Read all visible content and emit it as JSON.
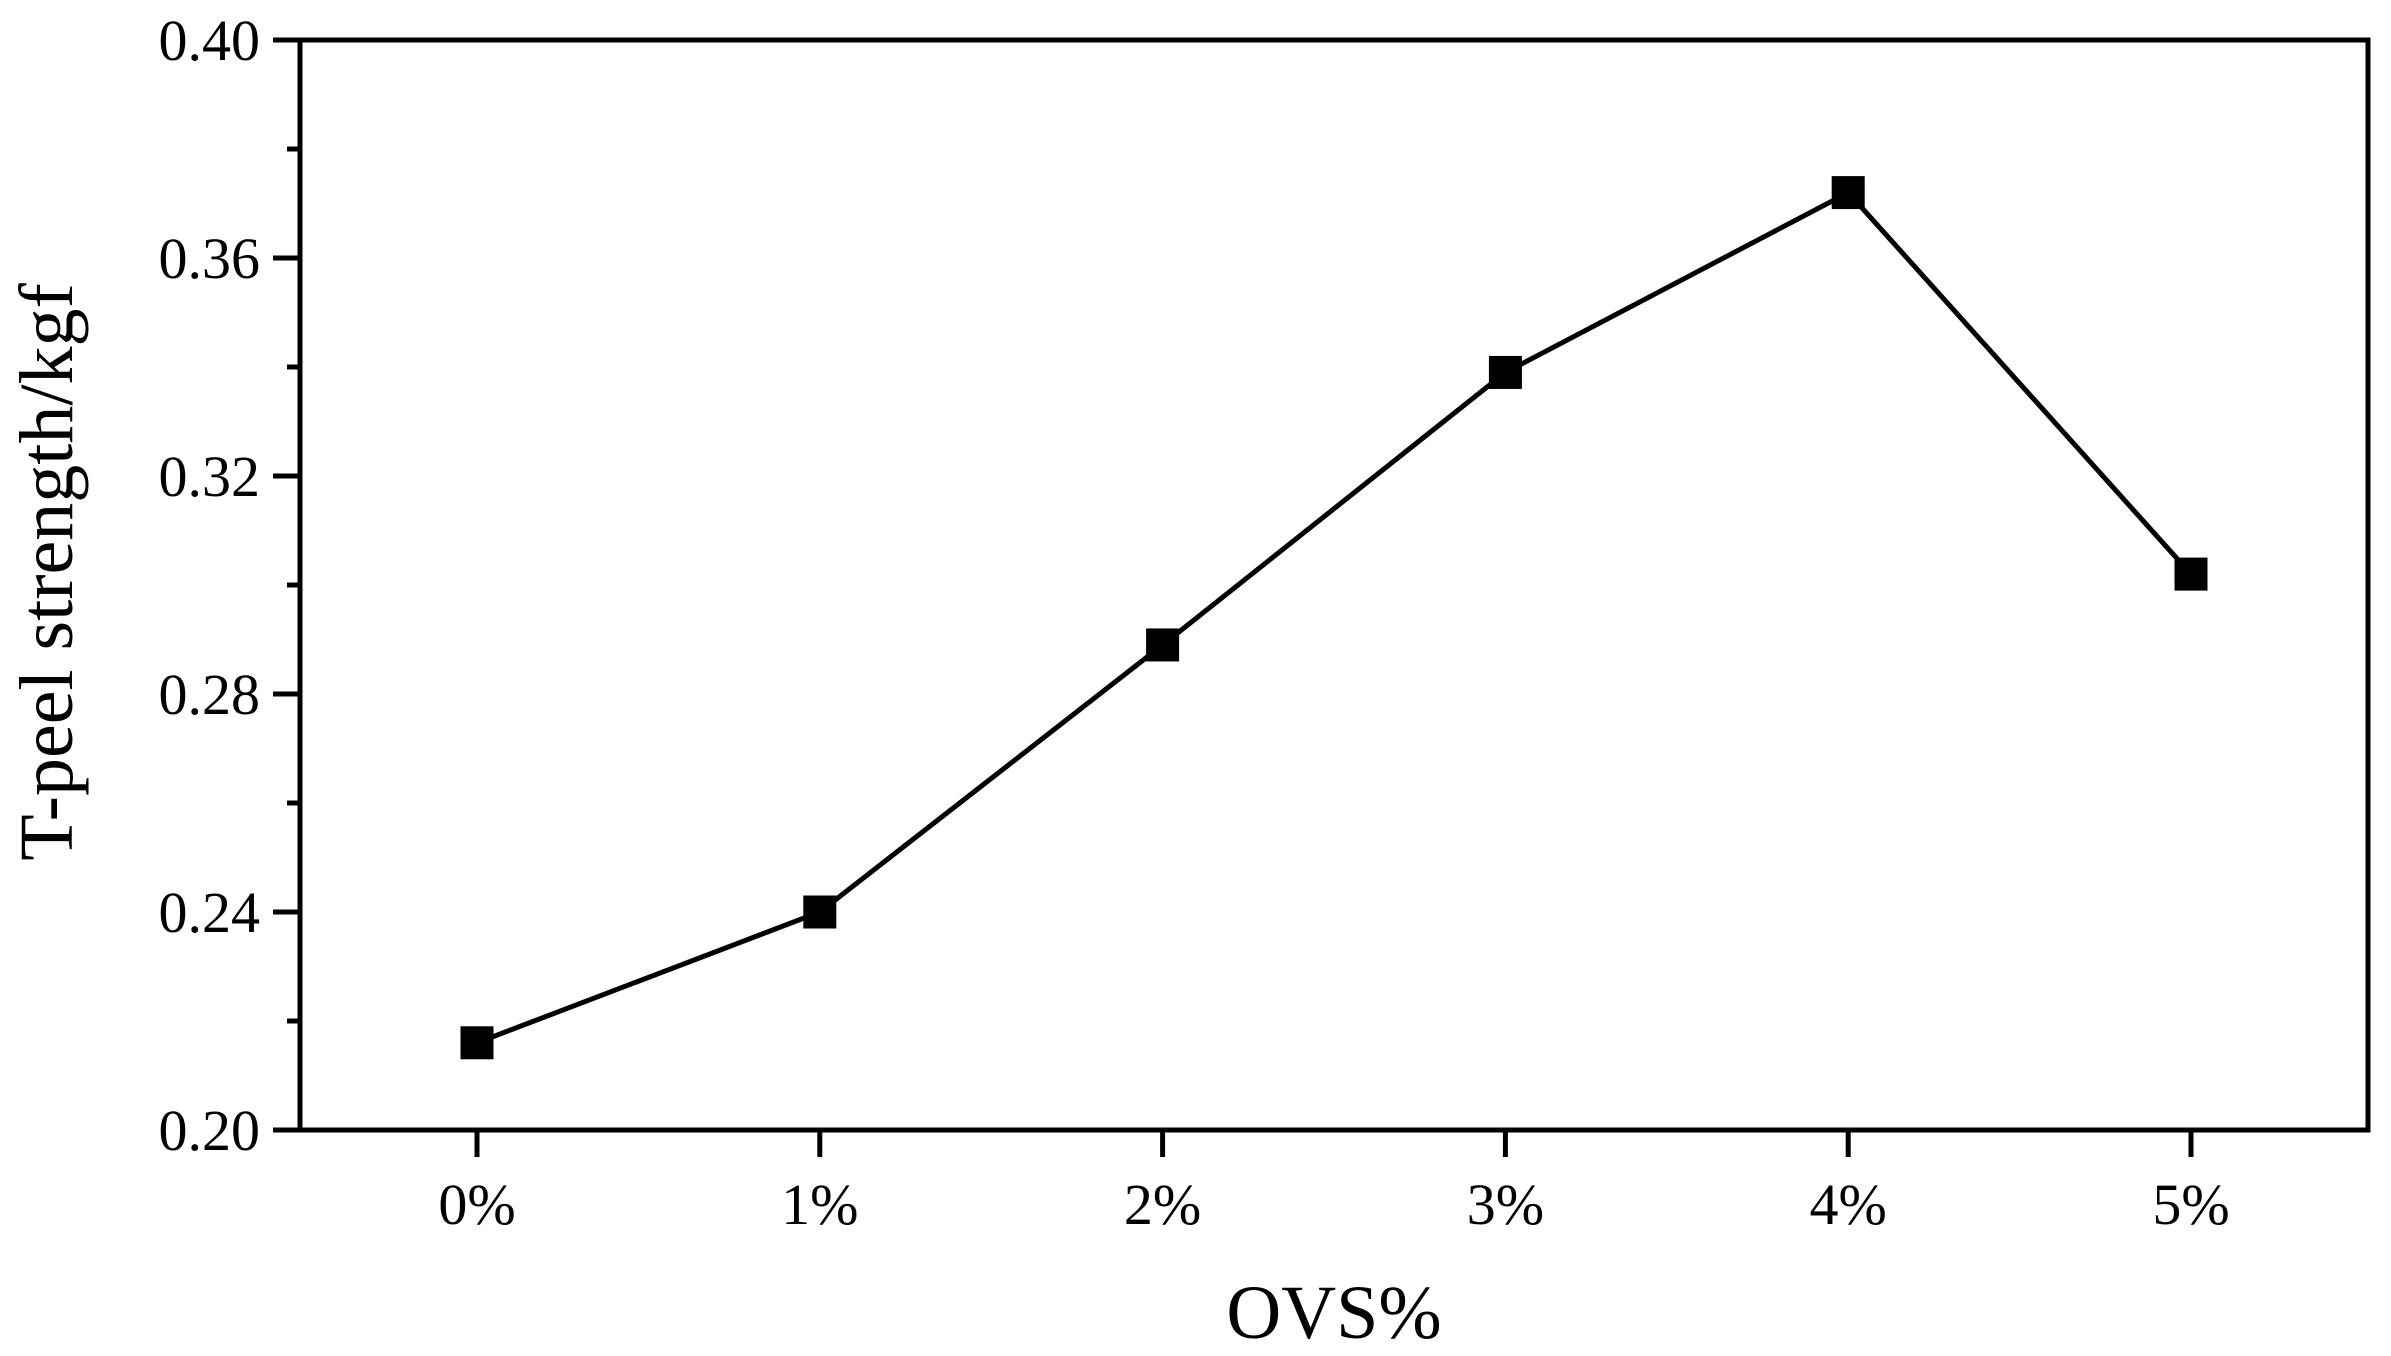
{
  "chart_data": {
    "type": "line",
    "title": "",
    "categories": [
      "0%",
      "1%",
      "2%",
      "3%",
      "4%",
      "5%"
    ],
    "series": [
      {
        "name": "T-peel strength",
        "values": [
          0.216,
          0.24,
          0.289,
          0.339,
          0.372,
          0.302
        ]
      }
    ],
    "xlabel": "OVS%",
    "ylabel": "T-peel strength/kgf",
    "ylim": [
      0.2,
      0.4
    ],
    "y_major_ticks": [
      0.2,
      0.24,
      0.28,
      0.32,
      0.36,
      0.4
    ],
    "y_tick_labels": [
      "0.20",
      "0.24",
      "0.28",
      "0.32",
      "0.36",
      "0.40"
    ],
    "y_minor_step": 0.02,
    "grid": false,
    "legend": "none",
    "frame": "full-box",
    "marker": "filled-square",
    "line_color": "#000000",
    "marker_color": "#000000",
    "text_color": "#000000",
    "background_color": "#ffffff"
  }
}
